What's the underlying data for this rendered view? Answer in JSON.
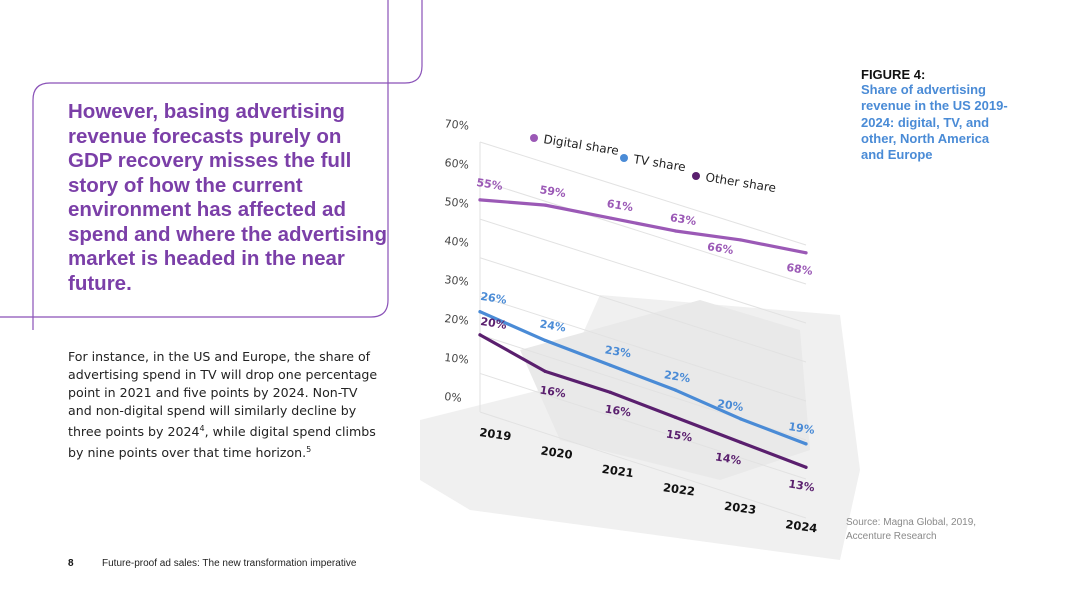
{
  "headline": "However, basing advertising revenue forecasts purely on GDP recovery misses the full story of how the current environment has affected ad spend and where the advertising market is headed in the near future.",
  "body": {
    "text": "For instance, in the US and Europe, the share of advertising spend in TV will drop one percentage point in 2021 and five points by 2024. Non-TV and non-digital spend will similarly decline by three points by 2024",
    "sup1": "4",
    "text2": ", while digital spend climbs by nine points over that time horizon.",
    "sup2": "5"
  },
  "figure": {
    "label": "FIGURE 4:",
    "title": "Share of advertising revenue in the US 2019-2024: digital, TV, and other, North America and Europe"
  },
  "source": "Source: Magna Global, 2019, Accenture Research",
  "footer": {
    "page": "8",
    "title": "Future-proof ad sales: The new transformation imperative"
  },
  "colors": {
    "accent_purple": "#7b3fa8",
    "digital": "#9b59b6",
    "tv": "#4a8bd6",
    "other": "#5a1f6e",
    "figure_title": "#4a8bd6"
  },
  "chart_data": {
    "type": "line",
    "categories": [
      "2019",
      "2020",
      "2021",
      "2022",
      "2023",
      "2024"
    ],
    "y_ticks": [
      "0%",
      "10%",
      "20%",
      "30%",
      "40%",
      "50%",
      "60%",
      "70%"
    ],
    "ylim": [
      0,
      70
    ],
    "legend_position": "top",
    "grid": true,
    "series": [
      {
        "name": "Digital share",
        "color": "#9b59b6",
        "values": [
          55,
          59,
          61,
          63,
          66,
          68
        ],
        "labels": [
          "55%",
          "59%",
          "61%",
          "63%",
          "66%",
          "68%"
        ]
      },
      {
        "name": "TV share",
        "color": "#4a8bd6",
        "values": [
          26,
          24,
          23,
          22,
          20,
          19
        ],
        "labels": [
          "26%",
          "24%",
          "23%",
          "22%",
          "20%",
          "19%"
        ]
      },
      {
        "name": "Other share",
        "color": "#5a1f6e",
        "values": [
          20,
          16,
          16,
          15,
          14,
          13
        ],
        "labels": [
          "20%",
          "16%",
          "16%",
          "15%",
          "14%",
          "13%"
        ]
      }
    ]
  }
}
